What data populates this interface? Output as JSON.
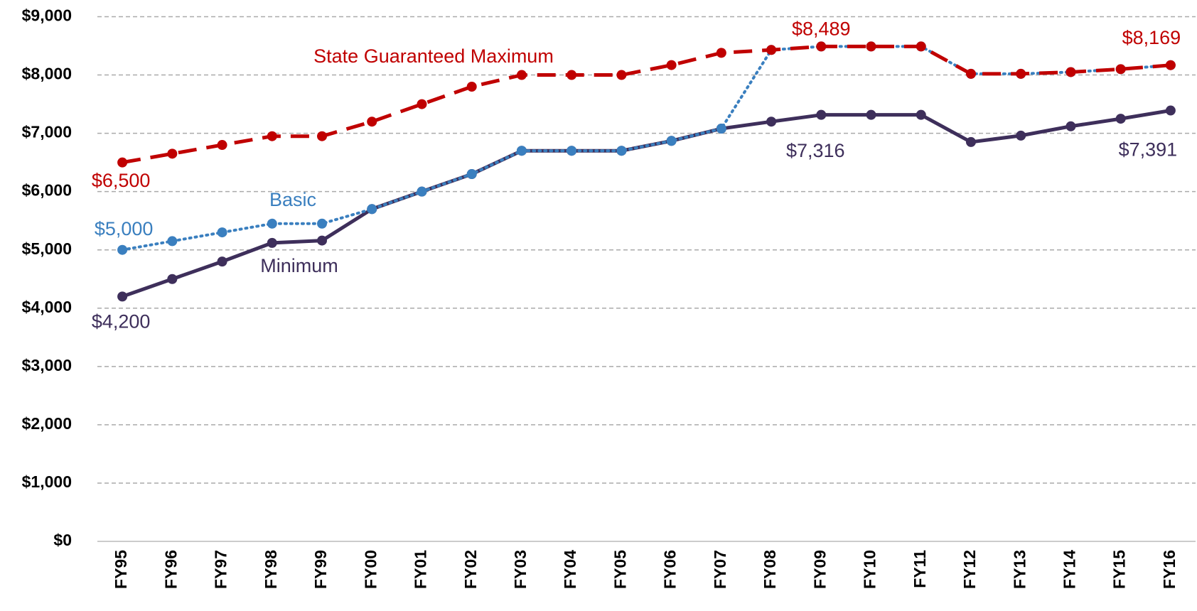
{
  "chart_data": {
    "type": "line",
    "categories": [
      "FY95",
      "FY96",
      "FY97",
      "FY98",
      "FY99",
      "FY00",
      "FY01",
      "FY02",
      "FY03",
      "FY04",
      "FY05",
      "FY06",
      "FY07",
      "FY08",
      "FY09",
      "FY10",
      "FY11",
      "FY12",
      "FY13",
      "FY14",
      "FY15",
      "FY16"
    ],
    "series": [
      {
        "name": "Minimum",
        "color": "#3e2f5b",
        "style": "solid",
        "values": [
          4200,
          4500,
          4800,
          5120,
          5160,
          5700,
          6000,
          6300,
          6700,
          6700,
          6700,
          6870,
          7080,
          7200,
          7316,
          7316,
          7316,
          6850,
          6960,
          7120,
          7250,
          7391
        ],
        "value_labels": [
          "$4,200",
          null,
          null,
          null,
          null,
          null,
          null,
          null,
          null,
          null,
          null,
          null,
          null,
          null,
          "$7,316",
          null,
          null,
          null,
          null,
          null,
          null,
          "$7,391"
        ]
      },
      {
        "name": "Basic",
        "color": "#3a7fbf",
        "style": "dotted",
        "values": [
          5000,
          5150,
          5300,
          5450,
          5450,
          5700,
          6000,
          6300,
          6700,
          6700,
          6700,
          6870,
          7080,
          8430,
          8489,
          8489,
          8489,
          8020,
          8020,
          8050,
          8100,
          8169
        ],
        "value_labels": [
          "$5,000",
          null,
          null,
          null,
          null,
          null,
          null,
          null,
          null,
          null,
          null,
          null,
          null,
          null,
          null,
          null,
          null,
          null,
          null,
          null,
          null,
          null
        ]
      },
      {
        "name": "State Guaranteed Maximum",
        "color": "#c00000",
        "style": "dashed",
        "values": [
          6500,
          6650,
          6800,
          6950,
          6950,
          7200,
          7500,
          7800,
          8000,
          8000,
          8000,
          8170,
          8380,
          8430,
          8489,
          8489,
          8489,
          8020,
          8020,
          8050,
          8100,
          8169
        ],
        "value_labels": [
          "$6,500",
          null,
          null,
          null,
          null,
          null,
          null,
          null,
          null,
          null,
          null,
          null,
          null,
          null,
          "$8,489",
          null,
          null,
          null,
          null,
          null,
          null,
          "$8,169"
        ]
      }
    ],
    "ylim": [
      0,
      9000
    ],
    "yticks": [
      {
        "value": 0,
        "label": "$0"
      },
      {
        "value": 1000,
        "label": "$1,000"
      },
      {
        "value": 2000,
        "label": "$2,000"
      },
      {
        "value": 3000,
        "label": "$3,000"
      },
      {
        "value": 4000,
        "label": "$4,000"
      },
      {
        "value": 5000,
        "label": "$5,000"
      },
      {
        "value": 6000,
        "label": "$6,000"
      },
      {
        "value": 7000,
        "label": "$7,000"
      },
      {
        "value": 8000,
        "label": "$8,000"
      },
      {
        "value": 9000,
        "label": "$9,000"
      }
    ],
    "grid": true
  }
}
